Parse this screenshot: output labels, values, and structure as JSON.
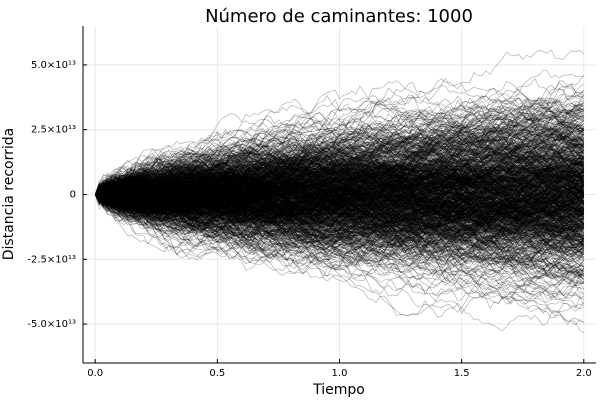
{
  "chart_data": {
    "type": "line",
    "title": "Número de caminantes: 1000",
    "xlabel": "Tiempo",
    "ylabel": "Distancia recorrida",
    "xlim": [
      -0.05,
      2.05
    ],
    "ylim": [
      -65000000000000.0,
      65000000000000.0
    ],
    "x_ticks": [
      {
        "value": 0.0,
        "label": "0.0"
      },
      {
        "value": 0.5,
        "label": "0.5"
      },
      {
        "value": 1.0,
        "label": "1.0"
      },
      {
        "value": 1.5,
        "label": "1.5"
      },
      {
        "value": 2.0,
        "label": "2.0"
      }
    ],
    "y_ticks": [
      {
        "value": 50000000000000.0,
        "label": "5.0×10¹³"
      },
      {
        "value": 25000000000000.0,
        "label": "2.5×10¹³"
      },
      {
        "value": 0,
        "label": "0"
      },
      {
        "value": -25000000000000.0,
        "label": "-2.5×10¹³"
      },
      {
        "value": -50000000000000.0,
        "label": "-5.0×10¹³"
      }
    ],
    "grid": true,
    "legend": "none",
    "series_color": "#000000",
    "walkers": 1000,
    "x_range": [
      0,
      2
    ],
    "spread_at_end": {
      "max": 60000000000000.0,
      "min": -62000000000000.0
    }
  }
}
